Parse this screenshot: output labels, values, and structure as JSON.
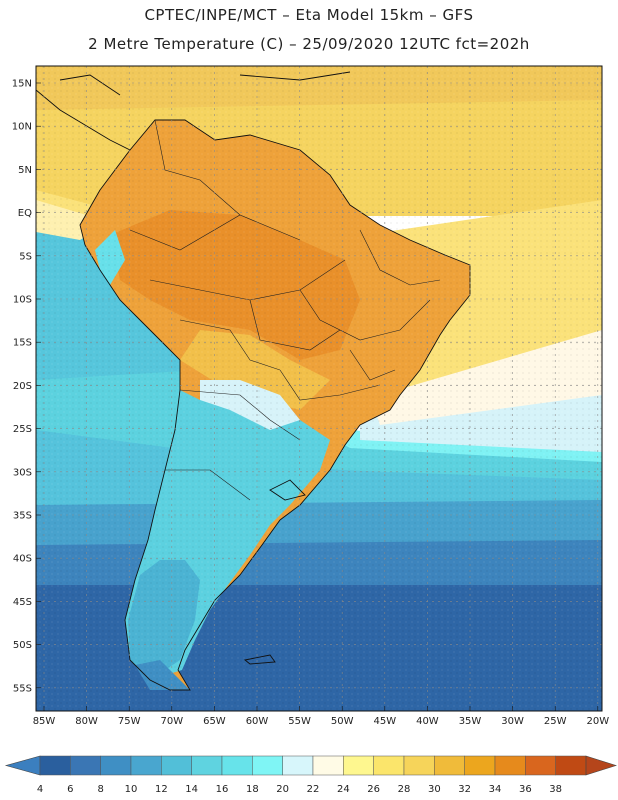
{
  "header": {
    "line1": "CPTEC/INPE/MCT –  Eta Model 15km – GFS",
    "line2": "2 Metre Temperature (C) – 25/09/2020 12UTC fct=202h"
  },
  "map": {
    "lat_labels": [
      "15N",
      "10N",
      "5N",
      "EQ",
      "5S",
      "10S",
      "15S",
      "20S",
      "25S",
      "30S",
      "35S",
      "40S",
      "45S",
      "50S",
      "55S"
    ],
    "lon_labels": [
      "85W",
      "80W",
      "75W",
      "70W",
      "65W",
      "60W",
      "55W",
      "50W",
      "45W",
      "40W",
      "35W",
      "30W",
      "25W",
      "20W"
    ],
    "extent": {
      "lon_min": -86,
      "lon_max": -19,
      "lat_min": -58,
      "lat_max": 16
    }
  },
  "legend": {
    "values": [
      "4",
      "6",
      "8",
      "10",
      "12",
      "14",
      "16",
      "18",
      "20",
      "22",
      "24",
      "26",
      "28",
      "30",
      "32",
      "34",
      "36",
      "38"
    ],
    "colors": [
      "#2a5f9e",
      "#3a76b4",
      "#3f8fc4",
      "#49a6cf",
      "#52bfd8",
      "#5fd3e0",
      "#67e3ea",
      "#7ff5f5",
      "#d7f6fb",
      "#fffbe6",
      "#fef78f",
      "#fbe56b",
      "#f6d45a",
      "#f0bb3a",
      "#eca61e",
      "#e68a1c",
      "#d9661e",
      "#c04a14"
    ],
    "left_color": "#3b7fbf",
    "right_color": "#b5451b"
  }
}
